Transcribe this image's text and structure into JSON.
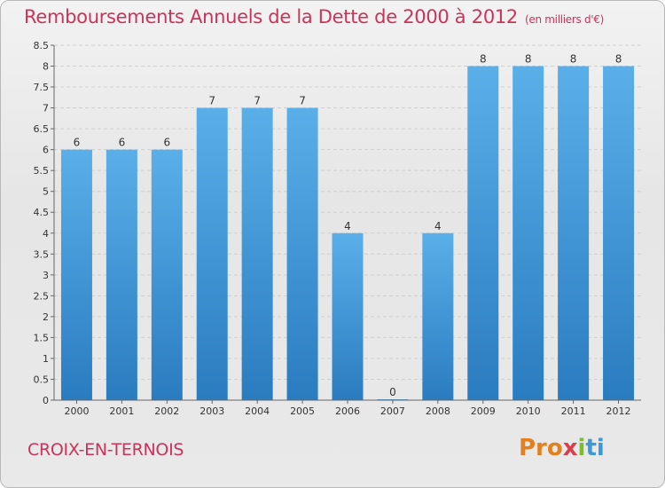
{
  "header": {
    "title": "Remboursements Annuels de la Dette de 2000 à 2012",
    "subtitle": "(en milliers d'€)"
  },
  "footer": {
    "commune": "CROIX-EN-TERNOIS",
    "logo": [
      "Pro",
      "x",
      "i",
      "ti"
    ]
  },
  "colors": {
    "title": "#c8345a",
    "bar_top": "#5aafe9",
    "bar_bottom": "#2a7cc0"
  },
  "chart_data": {
    "type": "bar",
    "title": "Remboursements Annuels de la Dette de 2000 à 2012",
    "subtitle": "(en milliers d'€)",
    "categories": [
      "2000",
      "2001",
      "2002",
      "2003",
      "2004",
      "2005",
      "2006",
      "2007",
      "2008",
      "2009",
      "2010",
      "2011",
      "2012"
    ],
    "values": [
      6,
      6,
      6,
      7,
      7,
      7,
      4,
      0,
      4,
      8,
      8,
      8,
      8
    ],
    "data_labels": [
      "6",
      "6",
      "6",
      "7",
      "7",
      "7",
      "4",
      "0",
      "4",
      "8",
      "8",
      "8",
      "8"
    ],
    "ylim": [
      0,
      8.5
    ],
    "yticks": [
      "0",
      "0.5",
      "1",
      "1.5",
      "2",
      "2.5",
      "3",
      "3.5",
      "4",
      "4.5",
      "5",
      "5.5",
      "6",
      "6.5",
      "7",
      "7.5",
      "8",
      "8.5"
    ],
    "grid": true,
    "xlabel": "",
    "ylabel": ""
  }
}
